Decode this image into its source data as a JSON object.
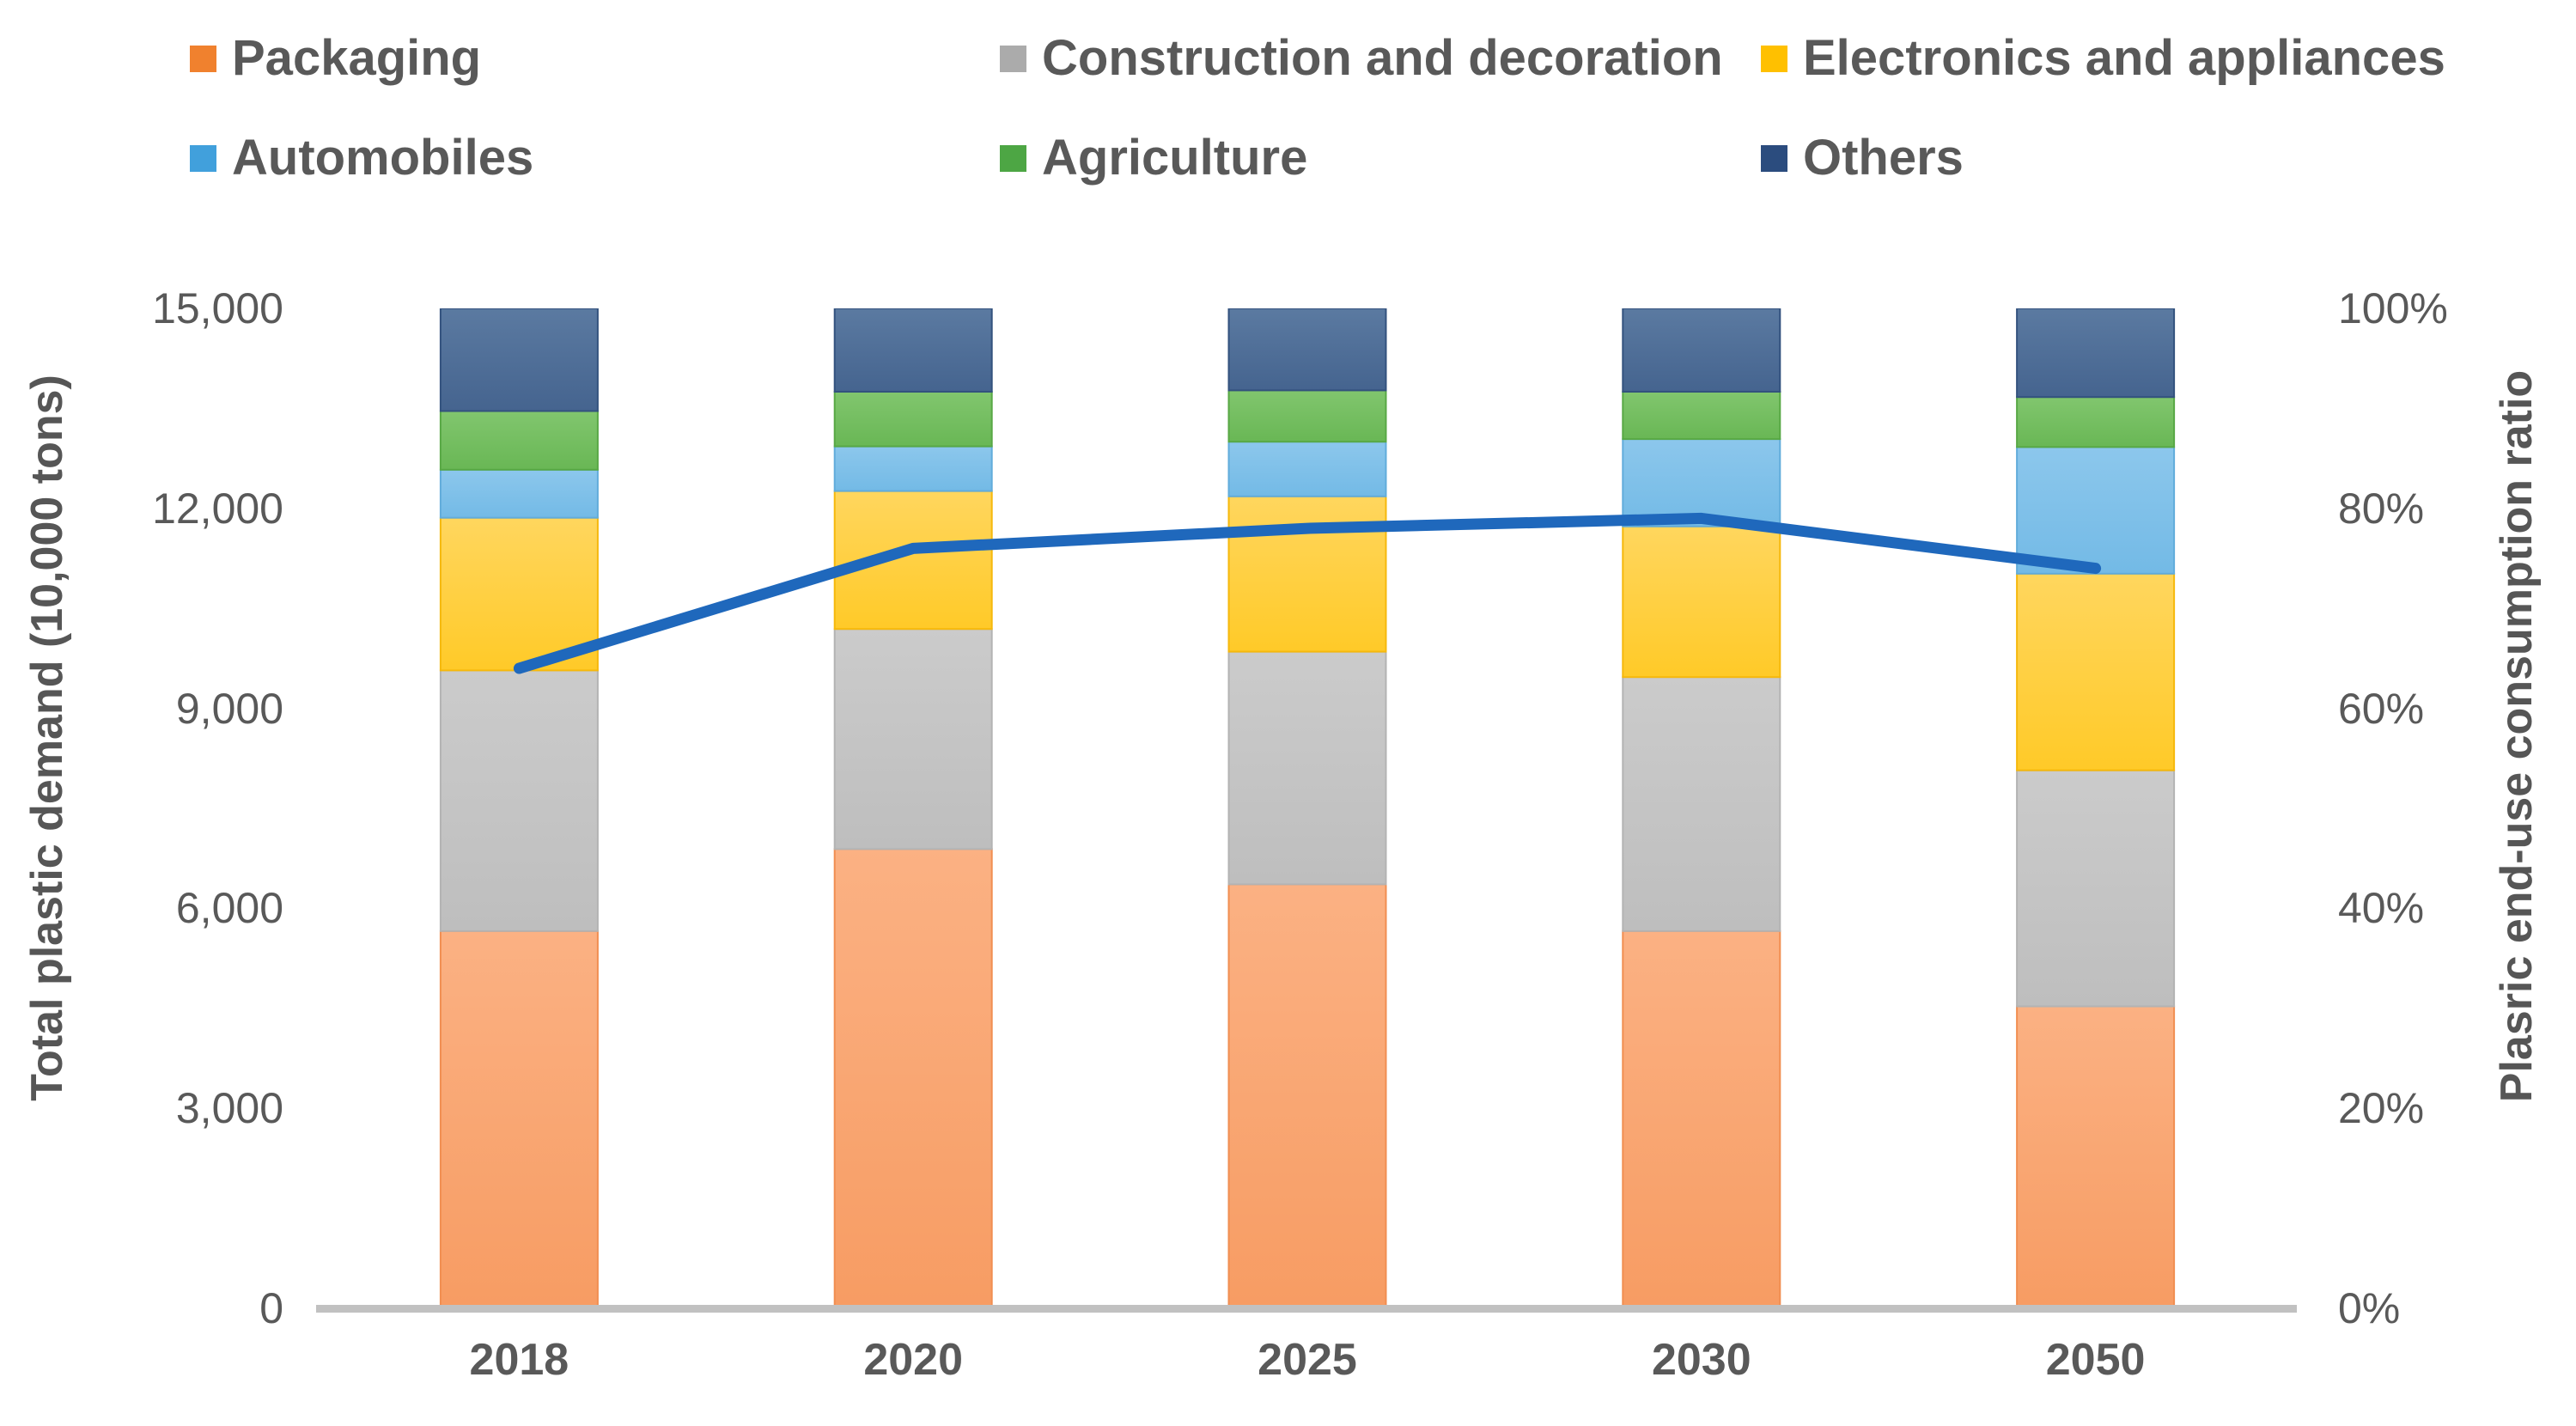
{
  "chart_data": {
    "type": "bar",
    "subtype": "stacked-bar-with-line",
    "categories": [
      "2018",
      "2020",
      "2025",
      "2030",
      "2050"
    ],
    "bar_unit": "10,000 tons",
    "bar_series": [
      {
        "name": "Packaging",
        "values": [
          5660,
          6890,
          6360,
          5660,
          4530
        ],
        "colors": {
          "swatch": "#F0812E",
          "fill_top": "#FBB183",
          "fill_bottom": "#F79C63",
          "edge": "#F18E51"
        }
      },
      {
        "name": "Construction and decoration",
        "values": [
          3910,
          3300,
          3490,
          3810,
          3540
        ],
        "colors": {
          "swatch": "#ABABAB",
          "fill_top": "#CBCBCB",
          "fill_bottom": "#BEBEBE",
          "edge": "#B3B3B3"
        }
      },
      {
        "name": "Electronics and appliances",
        "values": [
          2290,
          2070,
          2330,
          2260,
          2950
        ],
        "colors": {
          "swatch": "#FFC000",
          "fill_top": "#FFD65E",
          "fill_bottom": "#FFCA28",
          "edge": "#F6B80C"
        }
      },
      {
        "name": "Automobiles",
        "values": [
          720,
          670,
          820,
          1310,
          1900
        ],
        "colors": {
          "swatch": "#41A0DC",
          "fill_top": "#8CC7EC",
          "fill_bottom": "#73BAE6",
          "edge": "#61ACDB"
        }
      },
      {
        "name": "Agriculture",
        "values": [
          880,
          820,
          770,
          710,
          750
        ],
        "colors": {
          "swatch": "#4DA644",
          "fill_top": "#81C66E",
          "fill_bottom": "#69B755",
          "edge": "#58A845"
        }
      },
      {
        "name": "Others",
        "values": [
          1540,
          1250,
          1230,
          1250,
          1330
        ],
        "colors": {
          "swatch": "#2B4C7E",
          "fill_top": "#5B7AA1",
          "fill_bottom": "#45648F",
          "edge": "#33527E"
        }
      }
    ],
    "bar_totals": [
      15000,
      15000,
      15000,
      15000,
      15000
    ],
    "line_series": {
      "name": "Plasric end-use consumption ratio",
      "unit": "%",
      "values": [
        64,
        76,
        78,
        79,
        74
      ],
      "color": "#1F68BC"
    },
    "left_axis": {
      "title": "Total plastic demand (10,000 tons)",
      "ticks": [
        "15,000",
        "12,000",
        "9,000",
        "6,000",
        "3,000",
        "0"
      ],
      "tick_values": [
        15000,
        12000,
        9000,
        6000,
        3000,
        0
      ],
      "min": 0,
      "max": 15000
    },
    "right_axis": {
      "title": "Plasric end-use consumption ratio",
      "ticks": [
        "100%",
        "80%",
        "60%",
        "40%",
        "20%",
        "0%"
      ],
      "tick_values": [
        100,
        80,
        60,
        40,
        20,
        0
      ],
      "min": 0,
      "max": 100
    },
    "legend": {
      "position": "top",
      "rows": 2,
      "items": [
        "Packaging",
        "Construction and decoration",
        "Electronics and appliances",
        "Automobiles",
        "Agriculture",
        "Others"
      ]
    },
    "grid": "off",
    "axis_line_color": "#C1C1C1",
    "text_color": "#595959"
  }
}
